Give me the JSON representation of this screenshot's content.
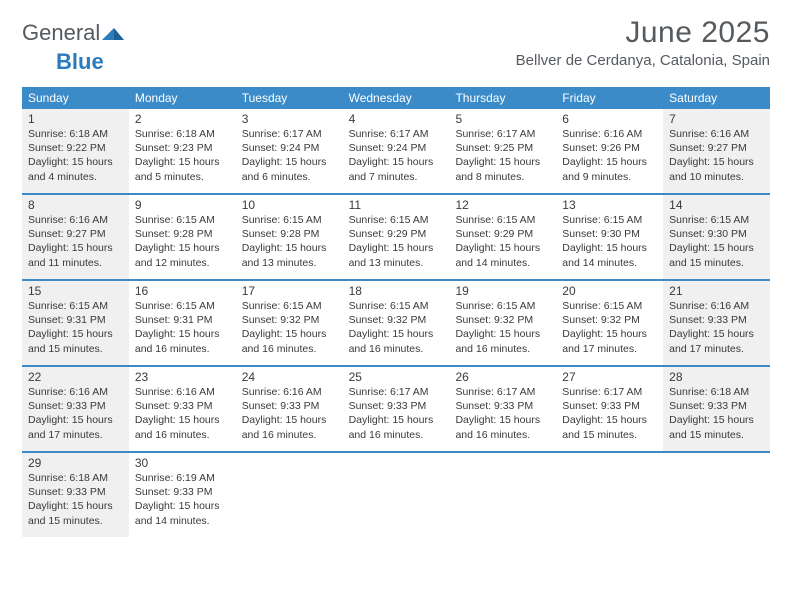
{
  "brand": {
    "name_part1": "General",
    "name_part2": "Blue",
    "text_color": "#555a5f",
    "accent_color": "#2b7bbd"
  },
  "header": {
    "month_title": "June 2025",
    "location": "Bellver de Cerdanya, Catalonia, Spain"
  },
  "colors": {
    "header_bg": "#3b8bc9",
    "header_text": "#ffffff",
    "row_divider": "#3b8bc9",
    "shaded_bg": "#f0f0f0",
    "body_text": "#3a3a3a",
    "page_bg": "#ffffff"
  },
  "day_headers": [
    "Sunday",
    "Monday",
    "Tuesday",
    "Wednesday",
    "Thursday",
    "Friday",
    "Saturday"
  ],
  "weeks": [
    [
      {
        "day": "1",
        "shaded": true,
        "sunrise": "Sunrise: 6:18 AM",
        "sunset": "Sunset: 9:22 PM",
        "dl1": "Daylight: 15 hours",
        "dl2": "and 4 minutes."
      },
      {
        "day": "2",
        "shaded": false,
        "sunrise": "Sunrise: 6:18 AM",
        "sunset": "Sunset: 9:23 PM",
        "dl1": "Daylight: 15 hours",
        "dl2": "and 5 minutes."
      },
      {
        "day": "3",
        "shaded": false,
        "sunrise": "Sunrise: 6:17 AM",
        "sunset": "Sunset: 9:24 PM",
        "dl1": "Daylight: 15 hours",
        "dl2": "and 6 minutes."
      },
      {
        "day": "4",
        "shaded": false,
        "sunrise": "Sunrise: 6:17 AM",
        "sunset": "Sunset: 9:24 PM",
        "dl1": "Daylight: 15 hours",
        "dl2": "and 7 minutes."
      },
      {
        "day": "5",
        "shaded": false,
        "sunrise": "Sunrise: 6:17 AM",
        "sunset": "Sunset: 9:25 PM",
        "dl1": "Daylight: 15 hours",
        "dl2": "and 8 minutes."
      },
      {
        "day": "6",
        "shaded": false,
        "sunrise": "Sunrise: 6:16 AM",
        "sunset": "Sunset: 9:26 PM",
        "dl1": "Daylight: 15 hours",
        "dl2": "and 9 minutes."
      },
      {
        "day": "7",
        "shaded": true,
        "sunrise": "Sunrise: 6:16 AM",
        "sunset": "Sunset: 9:27 PM",
        "dl1": "Daylight: 15 hours",
        "dl2": "and 10 minutes."
      }
    ],
    [
      {
        "day": "8",
        "shaded": true,
        "sunrise": "Sunrise: 6:16 AM",
        "sunset": "Sunset: 9:27 PM",
        "dl1": "Daylight: 15 hours",
        "dl2": "and 11 minutes."
      },
      {
        "day": "9",
        "shaded": false,
        "sunrise": "Sunrise: 6:15 AM",
        "sunset": "Sunset: 9:28 PM",
        "dl1": "Daylight: 15 hours",
        "dl2": "and 12 minutes."
      },
      {
        "day": "10",
        "shaded": false,
        "sunrise": "Sunrise: 6:15 AM",
        "sunset": "Sunset: 9:28 PM",
        "dl1": "Daylight: 15 hours",
        "dl2": "and 13 minutes."
      },
      {
        "day": "11",
        "shaded": false,
        "sunrise": "Sunrise: 6:15 AM",
        "sunset": "Sunset: 9:29 PM",
        "dl1": "Daylight: 15 hours",
        "dl2": "and 13 minutes."
      },
      {
        "day": "12",
        "shaded": false,
        "sunrise": "Sunrise: 6:15 AM",
        "sunset": "Sunset: 9:29 PM",
        "dl1": "Daylight: 15 hours",
        "dl2": "and 14 minutes."
      },
      {
        "day": "13",
        "shaded": false,
        "sunrise": "Sunrise: 6:15 AM",
        "sunset": "Sunset: 9:30 PM",
        "dl1": "Daylight: 15 hours",
        "dl2": "and 14 minutes."
      },
      {
        "day": "14",
        "shaded": true,
        "sunrise": "Sunrise: 6:15 AM",
        "sunset": "Sunset: 9:30 PM",
        "dl1": "Daylight: 15 hours",
        "dl2": "and 15 minutes."
      }
    ],
    [
      {
        "day": "15",
        "shaded": true,
        "sunrise": "Sunrise: 6:15 AM",
        "sunset": "Sunset: 9:31 PM",
        "dl1": "Daylight: 15 hours",
        "dl2": "and 15 minutes."
      },
      {
        "day": "16",
        "shaded": false,
        "sunrise": "Sunrise: 6:15 AM",
        "sunset": "Sunset: 9:31 PM",
        "dl1": "Daylight: 15 hours",
        "dl2": "and 16 minutes."
      },
      {
        "day": "17",
        "shaded": false,
        "sunrise": "Sunrise: 6:15 AM",
        "sunset": "Sunset: 9:32 PM",
        "dl1": "Daylight: 15 hours",
        "dl2": "and 16 minutes."
      },
      {
        "day": "18",
        "shaded": false,
        "sunrise": "Sunrise: 6:15 AM",
        "sunset": "Sunset: 9:32 PM",
        "dl1": "Daylight: 15 hours",
        "dl2": "and 16 minutes."
      },
      {
        "day": "19",
        "shaded": false,
        "sunrise": "Sunrise: 6:15 AM",
        "sunset": "Sunset: 9:32 PM",
        "dl1": "Daylight: 15 hours",
        "dl2": "and 16 minutes."
      },
      {
        "day": "20",
        "shaded": false,
        "sunrise": "Sunrise: 6:15 AM",
        "sunset": "Sunset: 9:32 PM",
        "dl1": "Daylight: 15 hours",
        "dl2": "and 17 minutes."
      },
      {
        "day": "21",
        "shaded": true,
        "sunrise": "Sunrise: 6:16 AM",
        "sunset": "Sunset: 9:33 PM",
        "dl1": "Daylight: 15 hours",
        "dl2": "and 17 minutes."
      }
    ],
    [
      {
        "day": "22",
        "shaded": true,
        "sunrise": "Sunrise: 6:16 AM",
        "sunset": "Sunset: 9:33 PM",
        "dl1": "Daylight: 15 hours",
        "dl2": "and 17 minutes."
      },
      {
        "day": "23",
        "shaded": false,
        "sunrise": "Sunrise: 6:16 AM",
        "sunset": "Sunset: 9:33 PM",
        "dl1": "Daylight: 15 hours",
        "dl2": "and 16 minutes."
      },
      {
        "day": "24",
        "shaded": false,
        "sunrise": "Sunrise: 6:16 AM",
        "sunset": "Sunset: 9:33 PM",
        "dl1": "Daylight: 15 hours",
        "dl2": "and 16 minutes."
      },
      {
        "day": "25",
        "shaded": false,
        "sunrise": "Sunrise: 6:17 AM",
        "sunset": "Sunset: 9:33 PM",
        "dl1": "Daylight: 15 hours",
        "dl2": "and 16 minutes."
      },
      {
        "day": "26",
        "shaded": false,
        "sunrise": "Sunrise: 6:17 AM",
        "sunset": "Sunset: 9:33 PM",
        "dl1": "Daylight: 15 hours",
        "dl2": "and 16 minutes."
      },
      {
        "day": "27",
        "shaded": false,
        "sunrise": "Sunrise: 6:17 AM",
        "sunset": "Sunset: 9:33 PM",
        "dl1": "Daylight: 15 hours",
        "dl2": "and 15 minutes."
      },
      {
        "day": "28",
        "shaded": true,
        "sunrise": "Sunrise: 6:18 AM",
        "sunset": "Sunset: 9:33 PM",
        "dl1": "Daylight: 15 hours",
        "dl2": "and 15 minutes."
      }
    ],
    [
      {
        "day": "29",
        "shaded": true,
        "sunrise": "Sunrise: 6:18 AM",
        "sunset": "Sunset: 9:33 PM",
        "dl1": "Daylight: 15 hours",
        "dl2": "and 15 minutes."
      },
      {
        "day": "30",
        "shaded": false,
        "sunrise": "Sunrise: 6:19 AM",
        "sunset": "Sunset: 9:33 PM",
        "dl1": "Daylight: 15 hours",
        "dl2": "and 14 minutes."
      },
      {
        "empty": true
      },
      {
        "empty": true
      },
      {
        "empty": true
      },
      {
        "empty": true
      },
      {
        "empty": true
      }
    ]
  ]
}
